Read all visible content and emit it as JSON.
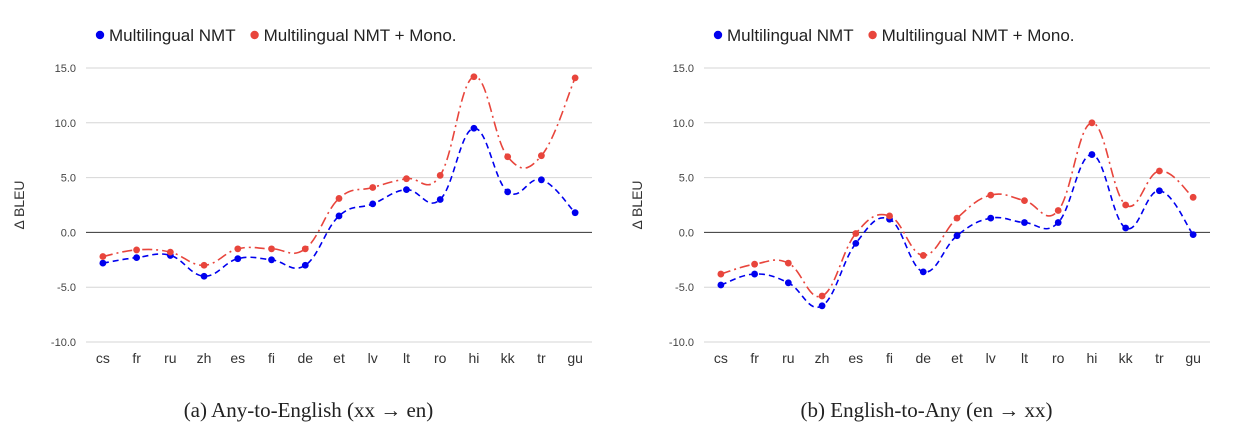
{
  "chart_data": [
    {
      "type": "line",
      "caption": "(a) Any-to-English (xx → en)",
      "ylabel": "Δ BLEU",
      "ylim": [
        -10,
        15
      ],
      "yticks": [
        -10,
        -5,
        0,
        5,
        10,
        15
      ],
      "ytick_labels": [
        "-10.0",
        "-5.0",
        "0.0",
        "5.0",
        "10.0",
        "15.0"
      ],
      "grid": true,
      "legend": "top-left",
      "categories": [
        "cs",
        "fr",
        "ru",
        "zh",
        "es",
        "fi",
        "de",
        "et",
        "lv",
        "lt",
        "ro",
        "hi",
        "kk",
        "tr",
        "gu"
      ],
      "series": [
        {
          "name": "Multilingual NMT",
          "color": "#0000ee",
          "values": [
            -2.8,
            -2.3,
            -2.1,
            -4.0,
            -2.4,
            -2.5,
            -3.0,
            1.5,
            2.6,
            3.9,
            3.0,
            9.5,
            3.7,
            4.8,
            1.8
          ]
        },
        {
          "name": "Multilingual NMT + Mono.",
          "color": "#e8453c",
          "values": [
            -2.2,
            -1.6,
            -1.8,
            -3.0,
            -1.5,
            -1.5,
            -1.5,
            3.1,
            4.1,
            4.9,
            5.2,
            14.2,
            6.9,
            7.0,
            14.1
          ]
        }
      ]
    },
    {
      "type": "line",
      "caption": "(b) English-to-Any (en → xx)",
      "ylabel": "Δ BLEU",
      "ylim": [
        -10,
        15
      ],
      "yticks": [
        -10,
        -5,
        0,
        5,
        10,
        15
      ],
      "ytick_labels": [
        "-10.0",
        "-5.0",
        "0.0",
        "5.0",
        "10.0",
        "15.0"
      ],
      "grid": true,
      "legend": "top-left",
      "categories": [
        "cs",
        "fr",
        "ru",
        "zh",
        "es",
        "fi",
        "de",
        "et",
        "lv",
        "lt",
        "ro",
        "hi",
        "kk",
        "tr",
        "gu"
      ],
      "series": [
        {
          "name": "Multilingual NMT",
          "color": "#0000ee",
          "values": [
            -4.8,
            -3.8,
            -4.6,
            -6.7,
            -1.0,
            1.2,
            -3.6,
            -0.3,
            1.3,
            0.9,
            0.9,
            7.1,
            0.4,
            3.8,
            -0.2
          ]
        },
        {
          "name": "Multilingual NMT + Mono.",
          "color": "#e8453c",
          "values": [
            -3.8,
            -2.9,
            -2.8,
            -5.8,
            -0.1,
            1.5,
            -2.1,
            1.3,
            3.4,
            2.9,
            2.0,
            10.0,
            2.5,
            5.6,
            3.2
          ]
        }
      ]
    }
  ]
}
